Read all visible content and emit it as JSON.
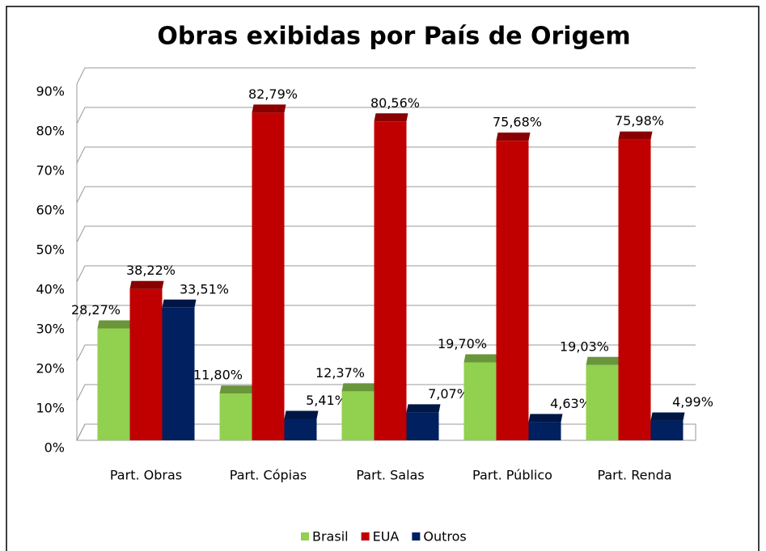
{
  "chart_data": {
    "type": "bar",
    "title": "Obras exibidas por País de Origem",
    "categories": [
      "Part. Obras",
      "Part. Cópias",
      "Part. Salas",
      "Part. Público",
      "Part. Renda"
    ],
    "series": [
      {
        "name": "Brasil",
        "color": "#92d050",
        "values": [
          28.27,
          11.8,
          12.37,
          19.7,
          19.03
        ],
        "value_labels": [
          "28,27%",
          "11,80%",
          "12,37%",
          "19,70%",
          "19,03%"
        ]
      },
      {
        "name": "EUA",
        "color": "#c00000",
        "values": [
          38.22,
          82.79,
          80.56,
          75.68,
          75.98
        ],
        "value_labels": [
          "38,22%",
          "82,79%",
          "80,56%",
          "75,68%",
          "75,98%"
        ]
      },
      {
        "name": "Outros",
        "color": "#002060",
        "values": [
          33.51,
          5.41,
          7.07,
          4.63,
          4.99
        ],
        "value_labels": [
          "33,51%",
          "5,41%",
          "7,07%",
          "4,63%",
          "4,99%"
        ]
      }
    ],
    "ylim": [
      0,
      90
    ],
    "yticks": [
      {
        "value": 0,
        "label": "0%"
      },
      {
        "value": 10,
        "label": "10%"
      },
      {
        "value": 20,
        "label": "20%"
      },
      {
        "value": 30,
        "label": "30%"
      },
      {
        "value": 40,
        "label": "40%"
      },
      {
        "value": 50,
        "label": "50%"
      },
      {
        "value": 60,
        "label": "60%"
      },
      {
        "value": 70,
        "label": "70%"
      },
      {
        "value": 80,
        "label": "80%"
      },
      {
        "value": 90,
        "label": "90%"
      }
    ],
    "grid": true,
    "legend": "bottom"
  }
}
